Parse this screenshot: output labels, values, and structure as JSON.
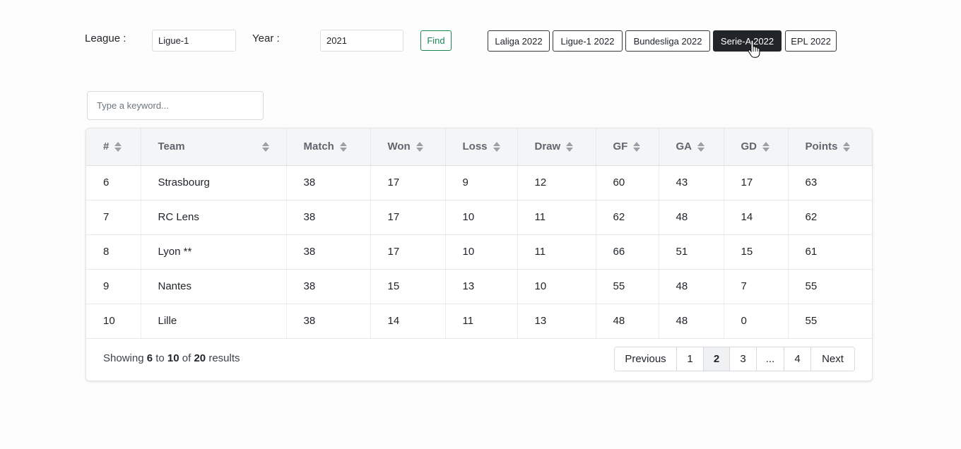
{
  "filters": {
    "league_label": "League :",
    "league_value": "Ligue-1",
    "year_label": "Year :",
    "year_value": "2021",
    "find_label": "Find"
  },
  "presets": [
    {
      "label": "Laliga 2022",
      "active": false
    },
    {
      "label": "Ligue-1 2022",
      "active": false
    },
    {
      "label": "Bundesliga 2022",
      "active": false
    },
    {
      "label": "Serie-A 2022",
      "active": true
    },
    {
      "label": "EPL 2022",
      "active": false
    }
  ],
  "search": {
    "placeholder": "Type a keyword...",
    "value": ""
  },
  "table": {
    "columns": [
      "#",
      "Team",
      "Match",
      "Won",
      "Loss",
      "Draw",
      "GF",
      "GA",
      "GD",
      "Points"
    ],
    "rows": [
      [
        "6",
        "Strasbourg",
        "38",
        "17",
        "9",
        "12",
        "60",
        "43",
        "17",
        "63"
      ],
      [
        "7",
        "RC Lens",
        "38",
        "17",
        "10",
        "11",
        "62",
        "48",
        "14",
        "62"
      ],
      [
        "8",
        "Lyon **",
        "38",
        "17",
        "10",
        "11",
        "66",
        "51",
        "15",
        "61"
      ],
      [
        "9",
        "Nantes",
        "38",
        "15",
        "13",
        "10",
        "55",
        "48",
        "7",
        "55"
      ],
      [
        "10",
        "Lille",
        "38",
        "14",
        "11",
        "13",
        "48",
        "48",
        "0",
        "55"
      ]
    ]
  },
  "summary": {
    "prefix": "Showing",
    "from": "6",
    "to_word": "to",
    "to": "10",
    "of_word": "of",
    "total": "20",
    "suffix": "results"
  },
  "pagination": {
    "previous": "Previous",
    "pages": [
      "1",
      "2",
      "3",
      "...",
      "4"
    ],
    "current": "2",
    "next": "Next"
  },
  "colors": {
    "accent_success": "#198754",
    "active_preset_bg": "#212529"
  }
}
